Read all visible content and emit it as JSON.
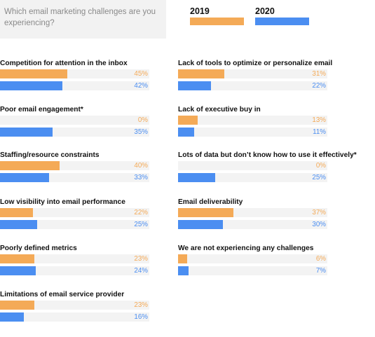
{
  "question": "Which email marketing challenges are you experiencing?",
  "colors": {
    "series_2019": "#f4aa57",
    "series_2020": "#4b8ef1"
  },
  "chart_data": {
    "type": "bar",
    "orientation": "horizontal",
    "title": "Which email marketing challenges are you experiencing?",
    "xlim": [
      0,
      100
    ],
    "legend": "top-right",
    "series": [
      {
        "name": "2019",
        "color": "#f4aa57"
      },
      {
        "name": "2020",
        "color": "#4b8ef1"
      }
    ],
    "items": [
      {
        "label": "Competition for attention in the inbox",
        "v2019": 45,
        "v2020": 42,
        "t2019": "45%",
        "t2020": "42%"
      },
      {
        "label": "Poor email engagement*",
        "v2019": 0,
        "v2020": 35,
        "t2019": "0%",
        "t2020": "35%"
      },
      {
        "label": "Staffing/resource constraints",
        "v2019": 40,
        "v2020": 33,
        "t2019": "40%",
        "t2020": "33%"
      },
      {
        "label": "Low visibility into email performance",
        "v2019": 22,
        "v2020": 25,
        "t2019": "22%",
        "t2020": "25%"
      },
      {
        "label": "Poorly defined metrics",
        "v2019": 23,
        "v2020": 24,
        "t2019": "23%",
        "t2020": "24%"
      },
      {
        "label": "Limitations of email service provider",
        "v2019": 23,
        "v2020": 16,
        "t2019": "23%",
        "t2020": "16%"
      },
      {
        "label": "Lack of tools to optimize or personalize email",
        "v2019": 31,
        "v2020": 22,
        "t2019": "31%",
        "t2020": "22%"
      },
      {
        "label": "Lack of executive buy in",
        "v2019": 13,
        "v2020": 11,
        "t2019": "13%",
        "t2020": "11%"
      },
      {
        "label": "Lots of data but don’t know how to use it effectively*",
        "v2019": 0,
        "v2020": 25,
        "t2019": "0%",
        "t2020": "25%"
      },
      {
        "label": "Email deliverability",
        "v2019": 37,
        "v2020": 30,
        "t2019": "37%",
        "t2020": "30%"
      },
      {
        "label": "We are not experiencing any challenges",
        "v2019": 6,
        "v2020": 7,
        "t2019": "6%",
        "t2020": "7%"
      }
    ]
  }
}
